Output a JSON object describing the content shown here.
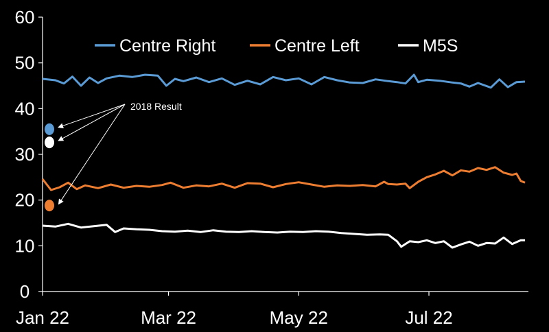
{
  "chart_data": {
    "type": "line",
    "title": "",
    "xlabel": "",
    "ylabel": "",
    "ylim": [
      0,
      60
    ],
    "yticks": [
      "0",
      "10",
      "20",
      "30",
      "40",
      "50",
      "60"
    ],
    "xticks": [
      {
        "label": "Jan 22",
        "day": 0
      },
      {
        "label": "Mar 22",
        "day": 59
      },
      {
        "label": "May 22",
        "day": 120
      },
      {
        "label": "Jul 22",
        "day": 181
      }
    ],
    "xrange_days": [
      0,
      226
    ],
    "legend": [
      "Centre Right",
      "Centre Left",
      "M5S"
    ],
    "series": [
      {
        "name": "Centre Right",
        "color": "#5B9BD5",
        "x": [
          0,
          6,
          10,
          14,
          18,
          22,
          26,
          30,
          36,
          42,
          48,
          54,
          58,
          62,
          66,
          72,
          78,
          84,
          90,
          96,
          102,
          108,
          114,
          120,
          126,
          132,
          138,
          144,
          150,
          156,
          162,
          166,
          170,
          174,
          176,
          180,
          186,
          192,
          196,
          200,
          204,
          210,
          214,
          218,
          222,
          226
        ],
        "values": [
          46.5,
          46.2,
          45.5,
          47.0,
          45.0,
          46.8,
          45.6,
          46.6,
          47.2,
          46.9,
          47.4,
          47.2,
          45.0,
          46.5,
          46.0,
          46.8,
          45.8,
          46.6,
          45.2,
          46.1,
          45.3,
          46.9,
          46.2,
          46.6,
          45.3,
          46.9,
          46.2,
          45.7,
          45.6,
          46.4,
          46.0,
          45.8,
          45.5,
          47.4,
          45.8,
          46.3,
          46.1,
          45.7,
          45.5,
          44.8,
          45.6,
          44.6,
          46.4,
          44.7,
          45.8,
          45.9
        ]
      },
      {
        "name": "Centre Left",
        "color": "#ED7D31",
        "x": [
          0,
          4,
          8,
          12,
          16,
          20,
          26,
          32,
          38,
          44,
          50,
          56,
          60,
          66,
          72,
          78,
          84,
          90,
          96,
          102,
          108,
          114,
          120,
          126,
          132,
          138,
          144,
          150,
          156,
          160,
          162,
          166,
          170,
          172,
          176,
          180,
          184,
          188,
          192,
          196,
          200,
          204,
          208,
          212,
          216,
          220,
          222,
          224,
          226
        ],
        "values": [
          24.6,
          22.2,
          22.8,
          23.8,
          22.4,
          23.2,
          22.6,
          23.4,
          22.7,
          23.1,
          22.9,
          23.3,
          23.8,
          22.7,
          23.2,
          23.0,
          23.6,
          22.7,
          23.7,
          23.6,
          22.8,
          23.5,
          23.9,
          23.4,
          22.9,
          23.2,
          23.1,
          23.3,
          23.0,
          24.0,
          23.5,
          23.4,
          23.6,
          22.6,
          24.0,
          25.0,
          25.6,
          26.4,
          25.4,
          26.5,
          26.2,
          27.0,
          26.6,
          27.2,
          26.0,
          25.5,
          25.8,
          24.2,
          23.8
        ]
      },
      {
        "name": "M5S",
        "color": "#FFFFFF",
        "x": [
          0,
          6,
          12,
          18,
          24,
          30,
          34,
          38,
          44,
          50,
          56,
          62,
          68,
          74,
          80,
          86,
          92,
          98,
          104,
          110,
          116,
          122,
          128,
          134,
          140,
          146,
          152,
          158,
          162,
          166,
          168,
          170,
          172,
          176,
          180,
          184,
          188,
          192,
          196,
          200,
          204,
          208,
          212,
          216,
          220,
          224,
          226
        ],
        "values": [
          14.4,
          14.2,
          14.8,
          14.0,
          14.3,
          14.6,
          13.0,
          13.8,
          13.6,
          13.5,
          13.2,
          13.1,
          13.3,
          13.0,
          13.4,
          13.1,
          13.0,
          13.2,
          13.0,
          12.9,
          13.1,
          13.0,
          13.2,
          13.1,
          12.8,
          12.6,
          12.4,
          12.5,
          12.4,
          11.0,
          9.8,
          10.4,
          11.0,
          10.8,
          11.2,
          10.6,
          11.0,
          9.6,
          10.3,
          10.9,
          10.0,
          10.6,
          10.5,
          11.8,
          10.4,
          11.2,
          11.2
        ]
      }
    ],
    "result_2018": {
      "label": "2018 Result",
      "points": [
        {
          "name": "Centre Right",
          "value": 35.5,
          "color": "#5B9BD5"
        },
        {
          "name": "M5S",
          "value": 32.6,
          "color": "#FFFFFF"
        },
        {
          "name": "Centre Left",
          "value": 18.8,
          "color": "#ED7D31"
        }
      ]
    }
  }
}
